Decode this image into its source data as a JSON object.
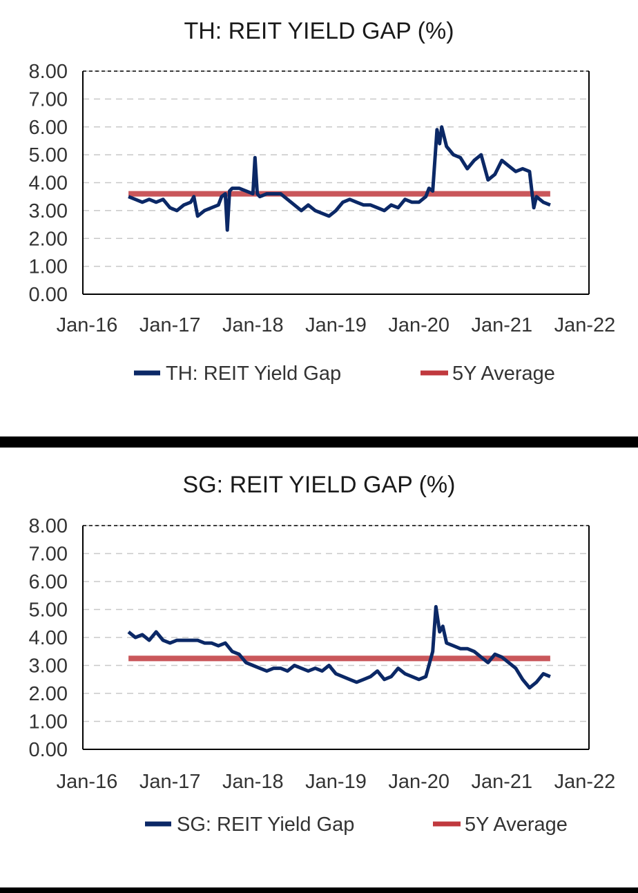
{
  "colors": {
    "series": "#0b2866",
    "average": "#c0393e",
    "grid": "#c8c8c8",
    "axis": "#000000"
  },
  "chart_data": [
    {
      "type": "line",
      "title": "TH: REIT YIELD GAP (%)",
      "xlabel": "",
      "ylabel": "",
      "ylim": [
        0,
        8
      ],
      "y_ticks": [
        "0.00",
        "1.00",
        "2.00",
        "3.00",
        "4.00",
        "5.00",
        "6.00",
        "7.00",
        "8.00"
      ],
      "x_ticks": [
        "Jan-16",
        "Jan-17",
        "Jan-18",
        "Jan-19",
        "Jan-20",
        "Jan-21",
        "Jan-22"
      ],
      "grid": "horizontal dashed",
      "legend": "bottom",
      "series": [
        {
          "name": "TH: REIT Yield Gap",
          "points": [
            [
              "2016-07-01",
              3.5
            ],
            [
              "2016-08-01",
              3.4
            ],
            [
              "2016-09-01",
              3.3
            ],
            [
              "2016-10-01",
              3.4
            ],
            [
              "2016-11-01",
              3.3
            ],
            [
              "2016-12-01",
              3.4
            ],
            [
              "2017-01-01",
              3.1
            ],
            [
              "2017-02-01",
              3.0
            ],
            [
              "2017-03-01",
              3.2
            ],
            [
              "2017-04-01",
              3.3
            ],
            [
              "2017-04-15",
              3.5
            ],
            [
              "2017-05-01",
              2.8
            ],
            [
              "2017-06-01",
              3.0
            ],
            [
              "2017-07-01",
              3.1
            ],
            [
              "2017-08-01",
              3.2
            ],
            [
              "2017-08-15",
              3.5
            ],
            [
              "2017-09-01",
              3.6
            ],
            [
              "2017-09-10",
              2.3
            ],
            [
              "2017-09-20",
              3.7
            ],
            [
              "2017-10-01",
              3.8
            ],
            [
              "2017-11-01",
              3.8
            ],
            [
              "2017-12-01",
              3.7
            ],
            [
              "2018-01-01",
              3.6
            ],
            [
              "2018-01-10",
              4.9
            ],
            [
              "2018-01-20",
              3.6
            ],
            [
              "2018-02-01",
              3.5
            ],
            [
              "2018-03-01",
              3.6
            ],
            [
              "2018-04-01",
              3.6
            ],
            [
              "2018-05-01",
              3.6
            ],
            [
              "2018-06-01",
              3.4
            ],
            [
              "2018-07-01",
              3.2
            ],
            [
              "2018-08-01",
              3.0
            ],
            [
              "2018-09-01",
              3.2
            ],
            [
              "2018-10-01",
              3.0
            ],
            [
              "2018-11-01",
              2.9
            ],
            [
              "2018-12-01",
              2.8
            ],
            [
              "2019-01-01",
              3.0
            ],
            [
              "2019-02-01",
              3.3
            ],
            [
              "2019-03-01",
              3.4
            ],
            [
              "2019-04-01",
              3.3
            ],
            [
              "2019-05-01",
              3.2
            ],
            [
              "2019-06-01",
              3.2
            ],
            [
              "2019-07-01",
              3.1
            ],
            [
              "2019-08-01",
              3.0
            ],
            [
              "2019-09-01",
              3.2
            ],
            [
              "2019-10-01",
              3.1
            ],
            [
              "2019-11-01",
              3.4
            ],
            [
              "2019-12-01",
              3.3
            ],
            [
              "2020-01-01",
              3.3
            ],
            [
              "2020-02-01",
              3.5
            ],
            [
              "2020-02-15",
              3.8
            ],
            [
              "2020-03-01",
              3.7
            ],
            [
              "2020-03-20",
              5.9
            ],
            [
              "2020-04-01",
              5.4
            ],
            [
              "2020-04-10",
              6.0
            ],
            [
              "2020-05-01",
              5.3
            ],
            [
              "2020-06-01",
              5.0
            ],
            [
              "2020-07-01",
              4.9
            ],
            [
              "2020-08-01",
              4.5
            ],
            [
              "2020-09-01",
              4.8
            ],
            [
              "2020-10-01",
              5.0
            ],
            [
              "2020-11-01",
              4.1
            ],
            [
              "2020-12-01",
              4.3
            ],
            [
              "2021-01-01",
              4.8
            ],
            [
              "2021-02-01",
              4.6
            ],
            [
              "2021-03-01",
              4.4
            ],
            [
              "2021-04-01",
              4.5
            ],
            [
              "2021-05-01",
              4.4
            ],
            [
              "2021-05-20",
              3.1
            ],
            [
              "2021-06-01",
              3.5
            ],
            [
              "2021-07-01",
              3.3
            ],
            [
              "2021-08-01",
              3.2
            ]
          ]
        },
        {
          "name": "5Y Average",
          "points": [
            [
              "2016-07-01",
              3.6
            ],
            [
              "2021-08-01",
              3.6
            ]
          ]
        }
      ]
    },
    {
      "type": "line",
      "title": "SG: REIT YIELD GAP (%)",
      "xlabel": "",
      "ylabel": "",
      "ylim": [
        0,
        8
      ],
      "y_ticks": [
        "0.00",
        "1.00",
        "2.00",
        "3.00",
        "4.00",
        "5.00",
        "6.00",
        "7.00",
        "8.00"
      ],
      "x_ticks": [
        "Jan-16",
        "Jan-17",
        "Jan-18",
        "Jan-19",
        "Jan-20",
        "Jan-21",
        "Jan-22"
      ],
      "grid": "horizontal dashed",
      "legend": "bottom",
      "series": [
        {
          "name": "SG: REIT Yield Gap",
          "points": [
            [
              "2016-07-01",
              4.2
            ],
            [
              "2016-08-01",
              4.0
            ],
            [
              "2016-09-01",
              4.1
            ],
            [
              "2016-10-01",
              3.9
            ],
            [
              "2016-11-01",
              4.2
            ],
            [
              "2016-12-01",
              3.9
            ],
            [
              "2017-01-01",
              3.8
            ],
            [
              "2017-02-01",
              3.9
            ],
            [
              "2017-03-01",
              3.9
            ],
            [
              "2017-04-01",
              3.9
            ],
            [
              "2017-05-01",
              3.9
            ],
            [
              "2017-06-01",
              3.8
            ],
            [
              "2017-07-01",
              3.8
            ],
            [
              "2017-08-01",
              3.7
            ],
            [
              "2017-09-01",
              3.8
            ],
            [
              "2017-10-01",
              3.5
            ],
            [
              "2017-11-01",
              3.4
            ],
            [
              "2017-12-01",
              3.1
            ],
            [
              "2018-01-01",
              3.0
            ],
            [
              "2018-02-01",
              2.9
            ],
            [
              "2018-03-01",
              2.8
            ],
            [
              "2018-04-01",
              2.9
            ],
            [
              "2018-05-01",
              2.9
            ],
            [
              "2018-06-01",
              2.8
            ],
            [
              "2018-07-01",
              3.0
            ],
            [
              "2018-08-01",
              2.9
            ],
            [
              "2018-09-01",
              2.8
            ],
            [
              "2018-10-01",
              2.9
            ],
            [
              "2018-11-01",
              2.8
            ],
            [
              "2018-12-01",
              3.0
            ],
            [
              "2019-01-01",
              2.7
            ],
            [
              "2019-02-01",
              2.6
            ],
            [
              "2019-03-01",
              2.5
            ],
            [
              "2019-04-01",
              2.4
            ],
            [
              "2019-05-01",
              2.5
            ],
            [
              "2019-06-01",
              2.6
            ],
            [
              "2019-07-01",
              2.8
            ],
            [
              "2019-08-01",
              2.5
            ],
            [
              "2019-09-01",
              2.6
            ],
            [
              "2019-10-01",
              2.9
            ],
            [
              "2019-11-01",
              2.7
            ],
            [
              "2019-12-01",
              2.6
            ],
            [
              "2020-01-01",
              2.5
            ],
            [
              "2020-02-01",
              2.6
            ],
            [
              "2020-03-01",
              3.5
            ],
            [
              "2020-03-15",
              5.1
            ],
            [
              "2020-04-01",
              4.2
            ],
            [
              "2020-04-15",
              4.4
            ],
            [
              "2020-05-01",
              3.8
            ],
            [
              "2020-06-01",
              3.7
            ],
            [
              "2020-07-01",
              3.6
            ],
            [
              "2020-08-01",
              3.6
            ],
            [
              "2020-09-01",
              3.5
            ],
            [
              "2020-10-01",
              3.3
            ],
            [
              "2020-11-01",
              3.1
            ],
            [
              "2020-12-01",
              3.4
            ],
            [
              "2021-01-01",
              3.3
            ],
            [
              "2021-02-01",
              3.1
            ],
            [
              "2021-03-01",
              2.9
            ],
            [
              "2021-04-01",
              2.5
            ],
            [
              "2021-05-01",
              2.2
            ],
            [
              "2021-06-01",
              2.4
            ],
            [
              "2021-07-01",
              2.7
            ],
            [
              "2021-08-01",
              2.6
            ]
          ]
        },
        {
          "name": "5Y Average",
          "points": [
            [
              "2016-07-01",
              3.25
            ],
            [
              "2021-08-01",
              3.25
            ]
          ]
        }
      ]
    }
  ]
}
